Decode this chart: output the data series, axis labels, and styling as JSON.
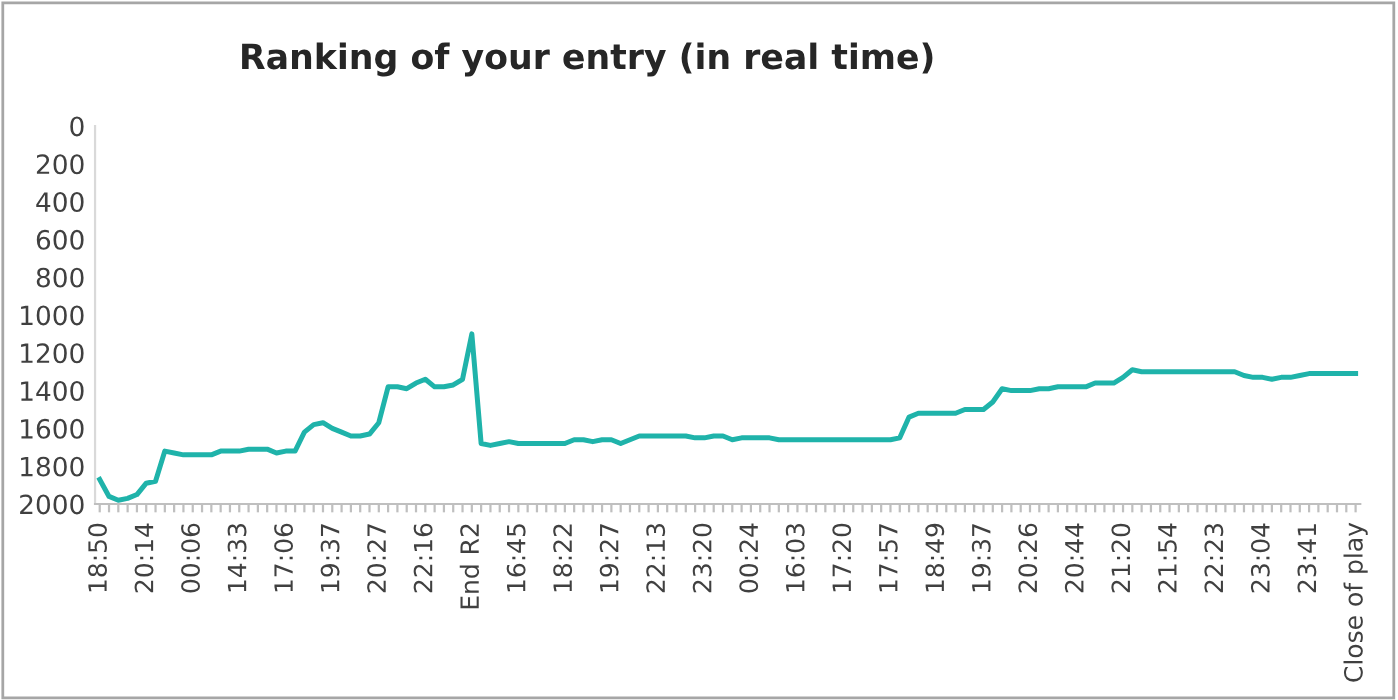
{
  "chart_data": {
    "type": "line",
    "title": "Ranking of your entry (in real time)",
    "categories": [
      "18:50",
      null,
      null,
      null,
      null,
      "20:14",
      null,
      null,
      null,
      null,
      "00:06",
      null,
      null,
      null,
      null,
      "14:33",
      null,
      null,
      null,
      null,
      "17:06",
      null,
      null,
      null,
      null,
      "19:37",
      null,
      null,
      null,
      null,
      "20:27",
      null,
      null,
      null,
      null,
      "22:16",
      null,
      null,
      null,
      null,
      "End R2",
      null,
      null,
      null,
      null,
      "16:45",
      null,
      null,
      null,
      null,
      "18:22",
      null,
      null,
      null,
      null,
      "19:27",
      null,
      null,
      null,
      null,
      "22:13",
      null,
      null,
      null,
      null,
      "23:20",
      null,
      null,
      null,
      null,
      "00:24",
      null,
      null,
      null,
      null,
      "16:03",
      null,
      null,
      null,
      null,
      "17:20",
      null,
      null,
      null,
      null,
      "17:57",
      null,
      null,
      null,
      null,
      "18:49",
      null,
      null,
      null,
      null,
      "19:37",
      null,
      null,
      null,
      null,
      "20:26",
      null,
      null,
      null,
      null,
      "20:44",
      null,
      null,
      null,
      null,
      "21:20",
      null,
      null,
      null,
      null,
      "21:54",
      null,
      null,
      null,
      null,
      "22:23",
      null,
      null,
      null,
      null,
      "23:04",
      null,
      null,
      null,
      null,
      "23:41",
      null,
      null,
      null,
      null,
      "Close of play"
    ],
    "series": [
      {
        "color": "#1fb3aa",
        "values": [
          1870,
          1960,
          1980,
          1970,
          1950,
          1890,
          1880,
          1720,
          1730,
          1740,
          1740,
          1740,
          1740,
          1720,
          1720,
          1720,
          1710,
          1710,
          1710,
          1730,
          1720,
          1720,
          1620,
          1580,
          1570,
          1600,
          1620,
          1640,
          1640,
          1630,
          1570,
          1380,
          1380,
          1390,
          1360,
          1340,
          1380,
          1380,
          1370,
          1340,
          1100,
          1680,
          1690,
          1680,
          1670,
          1680,
          1680,
          1680,
          1680,
          1680,
          1680,
          1660,
          1660,
          1670,
          1660,
          1660,
          1680,
          1660,
          1640,
          1640,
          1640,
          1640,
          1640,
          1640,
          1650,
          1650,
          1640,
          1640,
          1660,
          1650,
          1650,
          1650,
          1650,
          1660,
          1660,
          1660,
          1660,
          1660,
          1660,
          1660,
          1660,
          1660,
          1660,
          1660,
          1660,
          1660,
          1650,
          1540,
          1520,
          1520,
          1520,
          1520,
          1520,
          1500,
          1500,
          1500,
          1460,
          1390,
          1400,
          1400,
          1400,
          1390,
          1390,
          1380,
          1380,
          1380,
          1380,
          1360,
          1360,
          1360,
          1330,
          1290,
          1300,
          1300,
          1300,
          1300,
          1300,
          1300,
          1300,
          1300,
          1300,
          1300,
          1300,
          1320,
          1330,
          1330,
          1340,
          1330,
          1330,
          1320,
          1310,
          1310,
          1310,
          1310,
          1310,
          1310
        ]
      }
    ],
    "ylim": [
      2000,
      0
    ],
    "yticks": [
      0,
      200,
      400,
      600,
      800,
      1000,
      1200,
      1400,
      1600,
      1800,
      2000
    ],
    "grid": false,
    "marker": "none",
    "line_style": "solid"
  }
}
